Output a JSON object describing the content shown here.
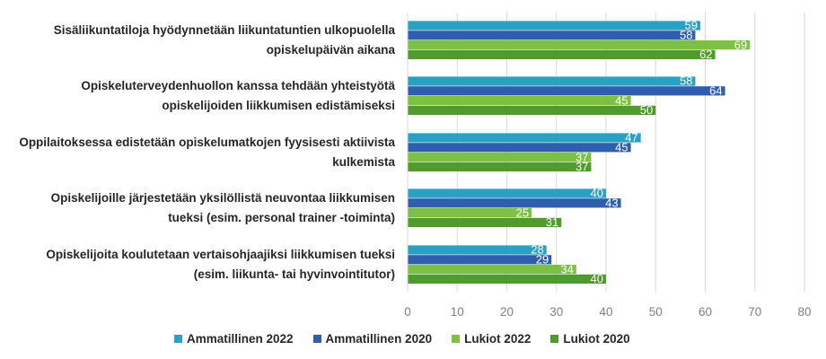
{
  "chart_data": {
    "type": "bar",
    "orientation": "horizontal",
    "categories": [
      "Sisäliikuntatiloja hyödynnetään liikuntatuntien ulkopuolella opiskelupäivän aikana",
      "Opiskeluterveydenhuollon kanssa tehdään yhteistyötä opiskelijoiden liikkumisen edistämiseksi",
      "Oppilaitoksessa edistetään opiskelumatkojen fyysisesti aktiivista kulkemista",
      "Opiskelijoille järjestetään yksilöllistä neuvontaa liikkumisen tueksi (esim. personal trainer -toiminta)",
      "Opiskelijoita koulutetaan vertaisohjaajiksi liikkumisen tueksi (esim. liikunta- tai hyvinvointitutor)"
    ],
    "category_lines": [
      [
        "Sisäliikuntatiloja hyödynnetään liikuntatuntien ulkopuolella",
        "opiskelupäivän aikana"
      ],
      [
        "Opiskeluterveydenhuollon kanssa tehdään yhteistyötä",
        "opiskelijoiden liikkumisen edistämiseksi"
      ],
      [
        "Oppilaitoksessa edistetään opiskelumatkojen fyysisesti aktiivista",
        "kulkemista"
      ],
      [
        "Opiskelijoille järjestetään yksilöllistä neuvontaa liikkumisen",
        "tueksi (esim. personal trainer -toiminta)"
      ],
      [
        "Opiskelijoita koulutetaan vertaisohjaajiksi liikkumisen tueksi",
        "(esim. liikunta- tai hyvinvointitutor)"
      ]
    ],
    "series": [
      {
        "name": "Ammatillinen 2022",
        "color": "#2aa0c2",
        "values": [
          59,
          58,
          47,
          40,
          28
        ]
      },
      {
        "name": "Ammatillinen 2020",
        "color": "#2f5fac",
        "values": [
          58,
          64,
          45,
          43,
          29
        ]
      },
      {
        "name": "Lukiot 2022",
        "color": "#7cc143",
        "values": [
          69,
          45,
          37,
          25,
          34
        ]
      },
      {
        "name": "Lukiot 2020",
        "color": "#519a2e",
        "values": [
          62,
          50,
          37,
          31,
          40
        ]
      }
    ],
    "xlim": [
      0,
      80
    ],
    "xticks": [
      "0",
      "10",
      "20",
      "30",
      "40",
      "50",
      "60",
      "70",
      "80"
    ],
    "grid": true,
    "data_labels": true,
    "legend": "bottom"
  }
}
